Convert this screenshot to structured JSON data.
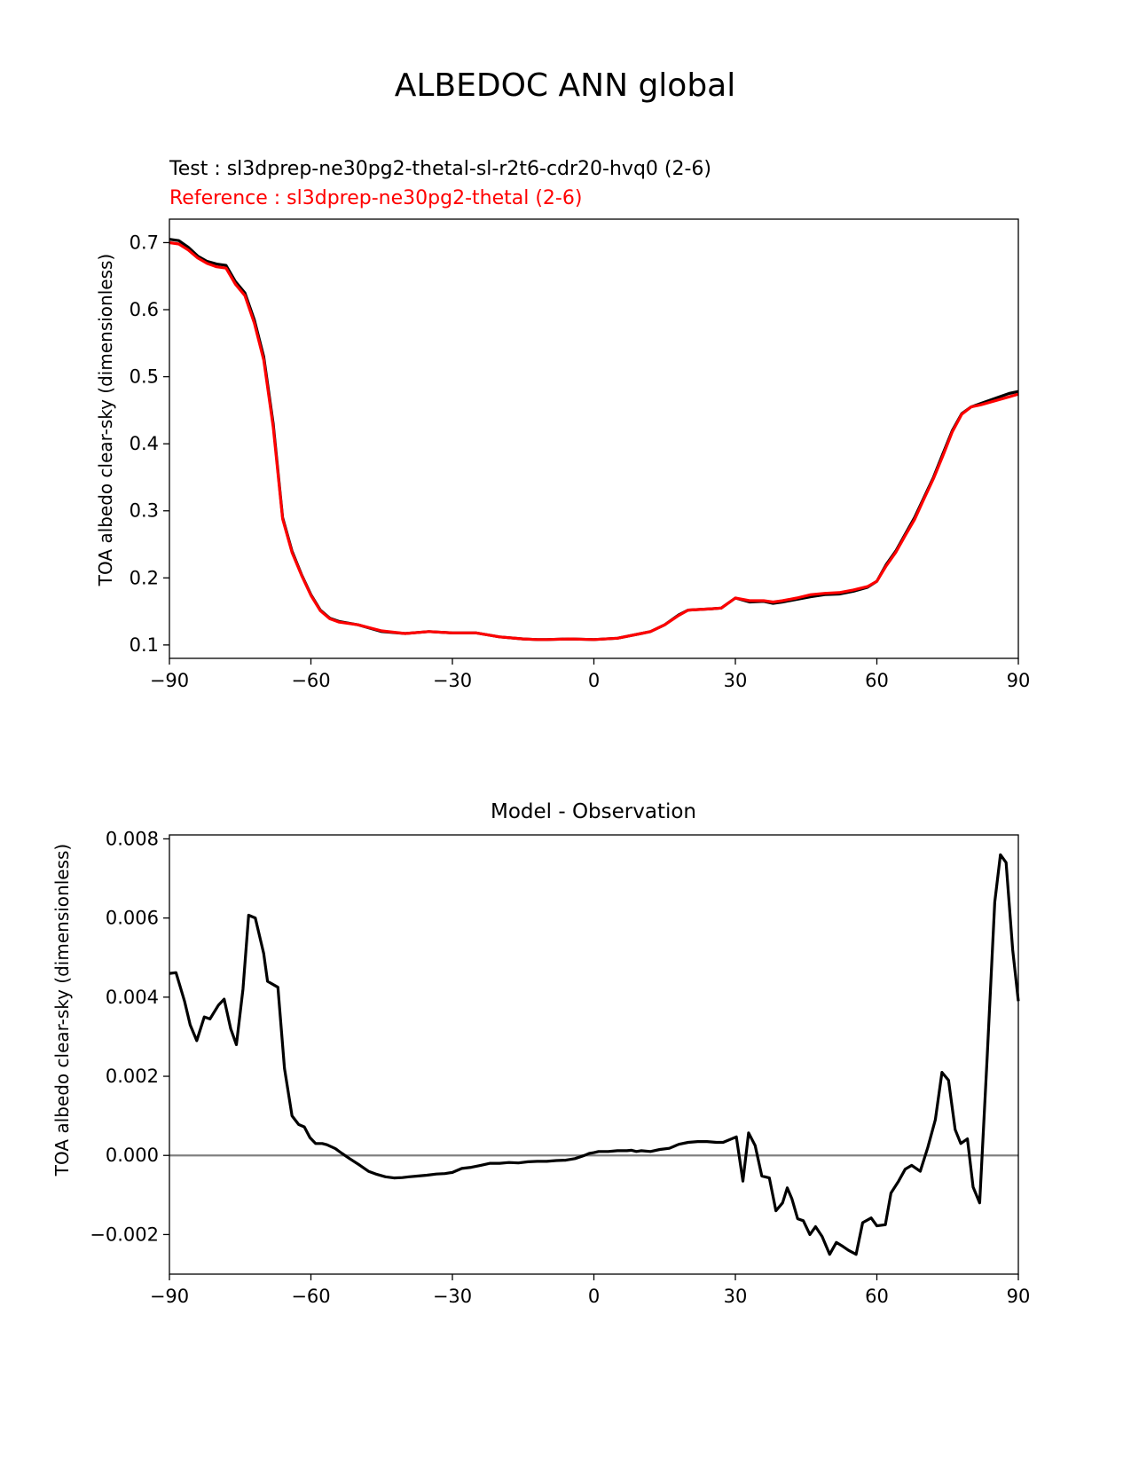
{
  "figure": {
    "title": "ALBEDOC ANN global"
  },
  "chart_data": [
    {
      "type": "line",
      "test_label": "Test : sl3dprep-ne30pg2-thetal-sl-r2t6-cdr20-hvq0 (2-6)",
      "reference_label": "Reference : sl3dprep-ne30pg2-thetal (2-6)",
      "xlabel": "",
      "ylabel": "TOA albedo clear-sky (dimensionless)",
      "xlim": [
        -90,
        90
      ],
      "ylim": [
        0.08,
        0.735
      ],
      "xticks": [
        -90,
        -60,
        -30,
        0,
        30,
        60,
        90
      ],
      "xtick_labels": [
        "−90",
        "−60",
        "−30",
        "0",
        "30",
        "60",
        "90"
      ],
      "yticks": [
        0.1,
        0.2,
        0.3,
        0.4,
        0.5,
        0.6,
        0.7
      ],
      "ytick_labels": [
        "0.1",
        "0.2",
        "0.3",
        "0.4",
        "0.5",
        "0.6",
        "0.7"
      ],
      "series": [
        {
          "key": "test",
          "color": "#000000",
          "x": [
            -90,
            -88,
            -86,
            -84,
            -82,
            -80,
            -78,
            -76,
            -74,
            -72,
            -70,
            -68,
            -66,
            -64,
            -62,
            -60,
            -58,
            -56,
            -54,
            -50,
            -45,
            -40,
            -35,
            -30,
            -25,
            -20,
            -15,
            -12,
            -10,
            -5,
            0,
            5,
            10,
            12,
            15,
            18,
            20,
            25,
            27,
            30,
            33,
            36,
            38,
            40,
            43,
            46,
            49,
            52,
            55,
            58,
            60,
            62,
            64,
            66,
            68,
            70,
            72,
            74,
            76,
            78,
            80,
            82,
            84,
            86,
            88,
            90
          ],
          "y": [
            0.705,
            0.703,
            0.693,
            0.68,
            0.672,
            0.668,
            0.666,
            0.642,
            0.625,
            0.585,
            0.53,
            0.43,
            0.29,
            0.24,
            0.205,
            0.175,
            0.152,
            0.14,
            0.135,
            0.13,
            0.12,
            0.117,
            0.12,
            0.118,
            0.118,
            0.112,
            0.109,
            0.108,
            0.108,
            0.109,
            0.108,
            0.11,
            0.117,
            0.12,
            0.13,
            0.145,
            0.152,
            0.154,
            0.155,
            0.17,
            0.164,
            0.165,
            0.162,
            0.164,
            0.168,
            0.172,
            0.175,
            0.176,
            0.18,
            0.186,
            0.195,
            0.22,
            0.24,
            0.265,
            0.29,
            0.32,
            0.35,
            0.385,
            0.42,
            0.445,
            0.455,
            0.46,
            0.465,
            0.47,
            0.475,
            0.478
          ]
        },
        {
          "key": "reference",
          "color": "#ff0000",
          "x": [
            -90,
            -88,
            -86,
            -84,
            -82,
            -80,
            -78,
            -76,
            -74,
            -72,
            -70,
            -68,
            -66,
            -64,
            -62,
            -60,
            -58,
            -56,
            -54,
            -50,
            -45,
            -40,
            -35,
            -30,
            -25,
            -20,
            -15,
            -12,
            -10,
            -5,
            0,
            5,
            10,
            12,
            15,
            18,
            20,
            25,
            27,
            30,
            33,
            36,
            38,
            40,
            43,
            46,
            49,
            52,
            55,
            58,
            60,
            62,
            64,
            66,
            68,
            70,
            72,
            74,
            76,
            78,
            80,
            82,
            84,
            86,
            88,
            90
          ],
          "y": [
            0.7,
            0.698,
            0.689,
            0.677,
            0.669,
            0.664,
            0.662,
            0.638,
            0.621,
            0.58,
            0.525,
            0.425,
            0.288,
            0.238,
            0.204,
            0.174,
            0.151,
            0.139,
            0.134,
            0.13,
            0.121,
            0.117,
            0.12,
            0.118,
            0.118,
            0.112,
            0.109,
            0.108,
            0.108,
            0.109,
            0.108,
            0.11,
            0.117,
            0.12,
            0.13,
            0.144,
            0.152,
            0.154,
            0.155,
            0.17,
            0.166,
            0.166,
            0.164,
            0.166,
            0.17,
            0.175,
            0.177,
            0.178,
            0.182,
            0.187,
            0.195,
            0.218,
            0.238,
            0.263,
            0.287,
            0.318,
            0.348,
            0.382,
            0.418,
            0.444,
            0.455,
            0.458,
            0.462,
            0.466,
            0.47,
            0.474
          ]
        }
      ]
    },
    {
      "type": "line",
      "title": "Model - Observation",
      "xlabel": "",
      "ylabel": "TOA albedo clear-sky (dimensionless)",
      "xlim": [
        -90,
        90
      ],
      "ylim": [
        -0.003,
        0.0081
      ],
      "xticks": [
        -90,
        -60,
        -30,
        0,
        30,
        60,
        90
      ],
      "xtick_labels": [
        "−90",
        "−60",
        "−30",
        "0",
        "30",
        "60",
        "90"
      ],
      "yticks": [
        -0.002,
        0.0,
        0.002,
        0.004,
        0.006,
        0.008
      ],
      "ytick_labels": [
        "−0.002",
        "0.000",
        "0.002",
        "0.004",
        "0.006",
        "0.008"
      ],
      "zero_line_color": "#808080",
      "series": [
        {
          "key": "difference",
          "color": "#000000",
          "x": [
            -90,
            -88.6,
            -86.8,
            -85.6,
            -84.2,
            -82.6,
            -81.4,
            -79.6,
            -78.4,
            -77,
            -75.8,
            -74.4,
            -73.2,
            -71.8,
            -70,
            -69.2,
            -67,
            -65.6,
            -64,
            -62.6,
            -61.4,
            -60.2,
            -59,
            -57.6,
            -56.6,
            -54.8,
            -53.4,
            -51.8,
            -49.6,
            -47.8,
            -46,
            -44.2,
            -42.4,
            -40.6,
            -39.2,
            -37.2,
            -35.4,
            -33.4,
            -31.6,
            -30,
            -28,
            -26,
            -24,
            -22,
            -20,
            -18,
            -16,
            -14,
            -12,
            -10,
            -8,
            -6,
            -4,
            -2,
            -1,
            0,
            1,
            3,
            5,
            7,
            8,
            9,
            10,
            12,
            14,
            16,
            18,
            20,
            22,
            24,
            26,
            27.4,
            30.2,
            31.6,
            32.8,
            34.2,
            35.6,
            37.2,
            38.6,
            40,
            41,
            42,
            43.2,
            44.4,
            45.8,
            47,
            48.4,
            50,
            51.4,
            52.8,
            54,
            55.6,
            57,
            58.8,
            60,
            61.8,
            63,
            64.6,
            66,
            67.4,
            69.2,
            70.8,
            72.4,
            73.8,
            75.2,
            76.6,
            77.8,
            79.2,
            80.4,
            81.8,
            83.4,
            85,
            86.2,
            87.4,
            88.8,
            90
          ],
          "y": [
            0.0046,
            0.00462,
            0.0039,
            0.0033,
            0.0029,
            0.0035,
            0.00345,
            0.0038,
            0.00395,
            0.0032,
            0.0028,
            0.0042,
            0.00607,
            0.006,
            0.0051,
            0.0044,
            0.00425,
            0.0022,
            0.001,
            0.00078,
            0.00072,
            0.00045,
            0.0003,
            0.0003,
            0.00027,
            0.00017,
            5e-05,
            -8e-05,
            -0.00025,
            -0.0004,
            -0.00048,
            -0.00054,
            -0.00057,
            -0.00056,
            -0.00054,
            -0.00052,
            -0.0005,
            -0.00047,
            -0.00046,
            -0.00043,
            -0.00033,
            -0.0003,
            -0.00025,
            -0.0002,
            -0.0002,
            -0.00018,
            -0.00019,
            -0.00016,
            -0.00015,
            -0.00015,
            -0.00013,
            -0.00012,
            -8e-05,
            0.0,
            5e-05,
            7e-05,
            0.0001,
            0.0001,
            0.00012,
            0.00012,
            0.00013,
            0.0001,
            0.00012,
            0.0001,
            0.00015,
            0.00018,
            0.00028,
            0.00033,
            0.00035,
            0.00035,
            0.00033,
            0.00033,
            0.00047,
            -0.00065,
            0.00057,
            0.00025,
            -0.00052,
            -0.00057,
            -0.0014,
            -0.0012,
            -0.00082,
            -0.0011,
            -0.0016,
            -0.00165,
            -0.002,
            -0.0018,
            -0.00205,
            -0.0025,
            -0.0022,
            -0.0023,
            -0.0024,
            -0.0025,
            -0.0017,
            -0.00158,
            -0.00178,
            -0.00175,
            -0.00095,
            -0.00065,
            -0.00035,
            -0.00025,
            -0.0004,
            0.0002,
            0.0009,
            0.0021,
            0.0019,
            0.00065,
            0.0003,
            0.00042,
            -0.0008,
            -0.0012,
            0.0025,
            0.0064,
            0.0076,
            0.0074,
            0.0052,
            0.0039
          ]
        }
      ]
    }
  ]
}
